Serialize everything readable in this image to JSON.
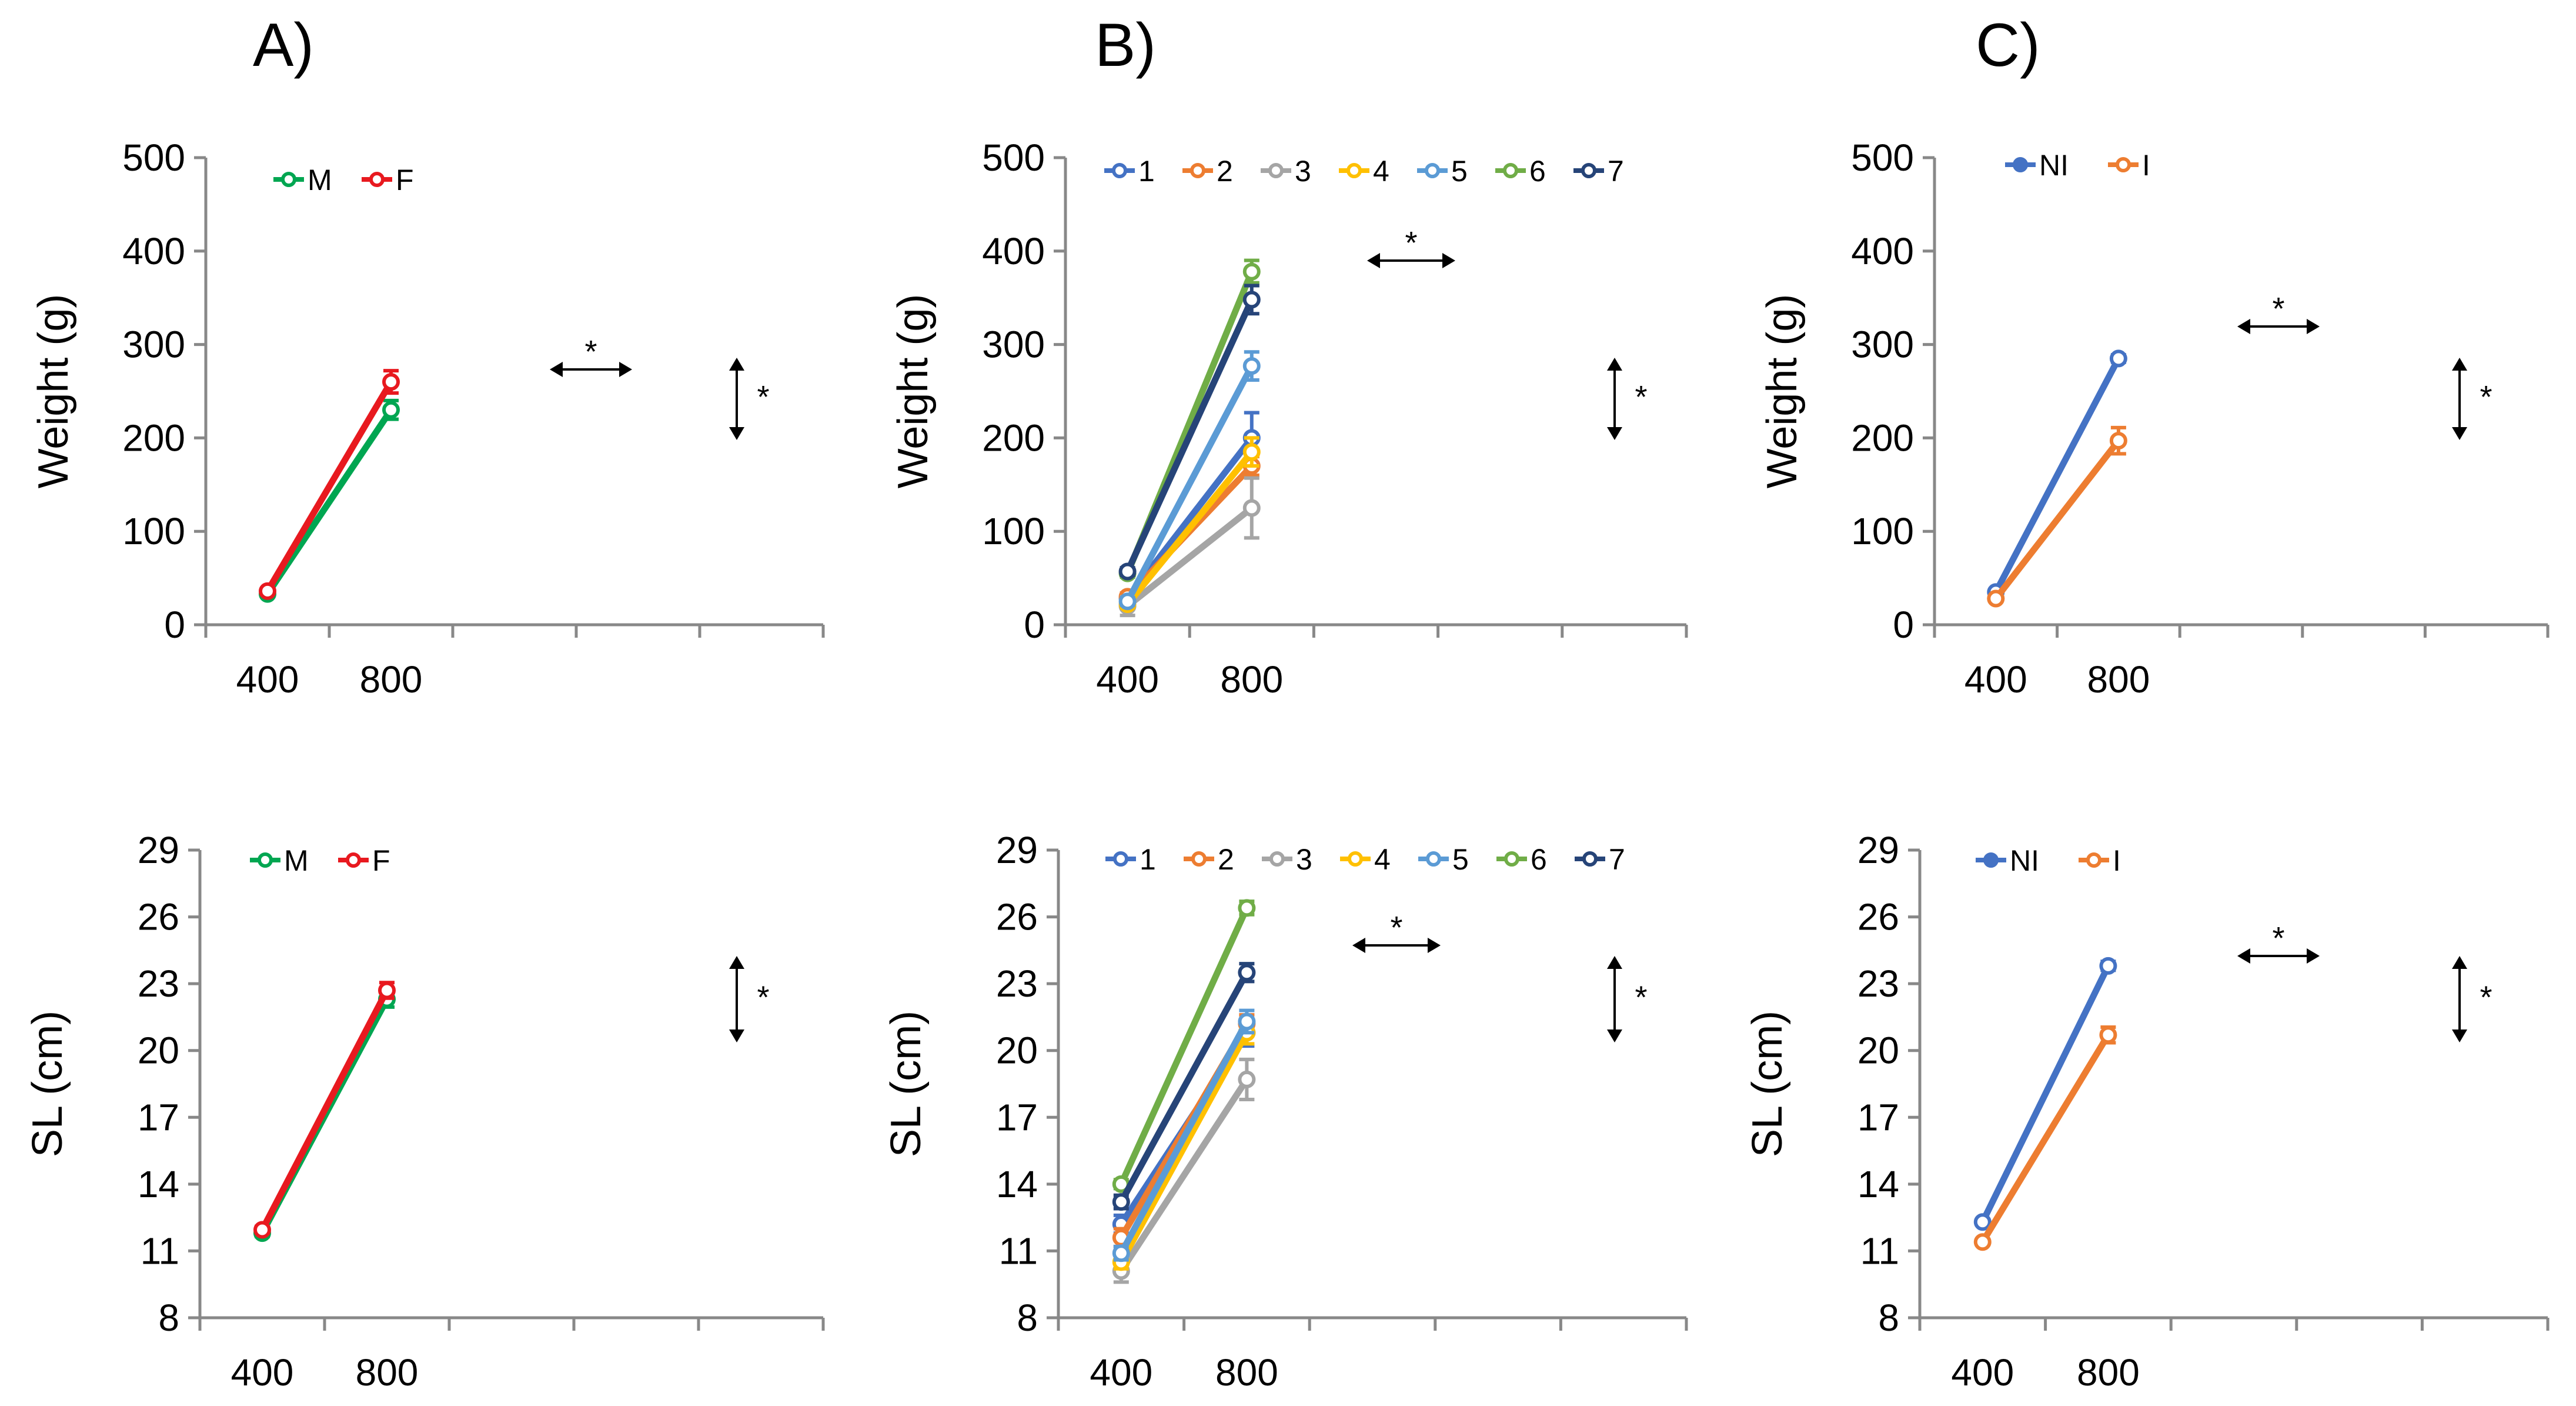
{
  "panel_labels": [
    "A)",
    "B)",
    "C)"
  ],
  "colors": {
    "M": "#00a651",
    "F": "#e8191f",
    "1": "#4472c4",
    "2": "#ed7d31",
    "3": "#a5a5a5",
    "4": "#ffc000",
    "5": "#5b9bd5",
    "6": "#70ad47",
    "7": "#264478",
    "NI": "#4472c4",
    "I": "#ed7d31"
  },
  "chart_data": [
    {
      "id": "A-weight",
      "panel": "A)",
      "type": "line",
      "title": "",
      "xlabel": "",
      "ylabel": "Weight (g)",
      "categories": [
        "400",
        "800"
      ],
      "ylim": [
        0,
        500
      ],
      "yticks": [
        0,
        100,
        200,
        300,
        400,
        500
      ],
      "grid": false,
      "legend": "top-left",
      "series": [
        {
          "name": "M",
          "values": [
            33,
            230
          ],
          "errors": [
            2,
            10
          ]
        },
        {
          "name": "F",
          "values": [
            36,
            260
          ],
          "errors": [
            2,
            12
          ]
        }
      ],
      "annotations": {
        "horizontal_star": "*",
        "vertical_star": "*"
      }
    },
    {
      "id": "B-weight",
      "panel": "B)",
      "type": "line",
      "title": "",
      "xlabel": "",
      "ylabel": "Weight (g)",
      "categories": [
        "400",
        "800"
      ],
      "ylim": [
        0,
        500
      ],
      "yticks": [
        0,
        100,
        200,
        300,
        400,
        500
      ],
      "grid": false,
      "legend": "top-left",
      "series": [
        {
          "name": "1",
          "values": [
            28,
            200
          ],
          "errors": [
            4,
            27
          ]
        },
        {
          "name": "2",
          "values": [
            30,
            170
          ],
          "errors": [
            4,
            10
          ]
        },
        {
          "name": "3",
          "values": [
            20,
            125
          ],
          "errors": [
            10,
            32
          ]
        },
        {
          "name": "4",
          "values": [
            22,
            185
          ],
          "errors": [
            4,
            15
          ]
        },
        {
          "name": "5",
          "values": [
            25,
            277
          ],
          "errors": [
            4,
            15
          ]
        },
        {
          "name": "6",
          "values": [
            55,
            378
          ],
          "errors": [
            4,
            12
          ]
        },
        {
          "name": "7",
          "values": [
            57,
            348
          ],
          "errors": [
            4,
            15
          ]
        }
      ],
      "annotations": {
        "horizontal_star": "*",
        "vertical_star": "*"
      }
    },
    {
      "id": "C-weight",
      "panel": "C)",
      "type": "line",
      "title": "",
      "xlabel": "",
      "ylabel": "Weight (g)",
      "categories": [
        "400",
        "800"
      ],
      "ylim": [
        0,
        500
      ],
      "yticks": [
        0,
        100,
        200,
        300,
        400,
        500
      ],
      "grid": false,
      "legend": "top-left",
      "series": [
        {
          "name": "NI",
          "values": [
            35,
            285
          ],
          "errors": [
            2,
            4
          ]
        },
        {
          "name": "I",
          "values": [
            28,
            197
          ],
          "errors": [
            2,
            14
          ]
        }
      ],
      "annotations": {
        "horizontal_star": "*",
        "vertical_star": "*"
      }
    },
    {
      "id": "A-sl",
      "panel": "A)",
      "type": "line",
      "title": "",
      "xlabel": "",
      "ylabel": "SL (cm)",
      "categories": [
        "400",
        "800"
      ],
      "ylim": [
        8,
        29
      ],
      "yticks": [
        8,
        11,
        14,
        17,
        20,
        23,
        26,
        29
      ],
      "grid": false,
      "legend": "top-left",
      "series": [
        {
          "name": "M",
          "values": [
            11.8,
            22.3
          ],
          "errors": [
            0.15,
            0.35
          ]
        },
        {
          "name": "F",
          "values": [
            11.95,
            22.7
          ],
          "errors": [
            0.15,
            0.35
          ]
        }
      ],
      "annotations": {
        "vertical_star": "*"
      }
    },
    {
      "id": "B-sl",
      "panel": "B)",
      "type": "line",
      "title": "",
      "xlabel": "",
      "ylabel": "SL (cm)",
      "categories": [
        "400",
        "800"
      ],
      "ylim": [
        8,
        29
      ],
      "yticks": [
        8,
        11,
        14,
        17,
        20,
        23,
        26,
        29
      ],
      "grid": false,
      "legend": "top-left",
      "series": [
        {
          "name": "1",
          "values": [
            12.2,
            20.8
          ],
          "errors": [
            0.4,
            0.6
          ]
        },
        {
          "name": "2",
          "values": [
            11.6,
            21.2
          ],
          "errors": [
            0.4,
            0.4
          ]
        },
        {
          "name": "3",
          "values": [
            10.1,
            18.7
          ],
          "errors": [
            0.5,
            0.9
          ]
        },
        {
          "name": "4",
          "values": [
            10.5,
            20.8
          ],
          "errors": [
            0.3,
            0.5
          ]
        },
        {
          "name": "5",
          "values": [
            10.9,
            21.3
          ],
          "errors": [
            0.3,
            0.5
          ]
        },
        {
          "name": "6",
          "values": [
            14.0,
            26.4
          ],
          "errors": [
            0.2,
            0.3
          ]
        },
        {
          "name": "7",
          "values": [
            13.2,
            23.5
          ],
          "errors": [
            0.3,
            0.4
          ]
        }
      ],
      "annotations": {
        "horizontal_star": "*",
        "vertical_star": "*"
      }
    },
    {
      "id": "C-sl",
      "panel": "C)",
      "type": "line",
      "title": "",
      "xlabel": "",
      "ylabel": "SL (cm)",
      "categories": [
        "400",
        "800"
      ],
      "ylim": [
        8,
        29
      ],
      "yticks": [
        8,
        11,
        14,
        17,
        20,
        23,
        26,
        29
      ],
      "grid": false,
      "legend": "top-left",
      "series": [
        {
          "name": "NI",
          "values": [
            12.3,
            23.8
          ],
          "errors": [
            0.1,
            0.2
          ]
        },
        {
          "name": "I",
          "values": [
            11.4,
            20.7
          ],
          "errors": [
            0.1,
            0.35
          ]
        }
      ],
      "annotations": {
        "horizontal_star": "*",
        "vertical_star": "*"
      }
    }
  ]
}
